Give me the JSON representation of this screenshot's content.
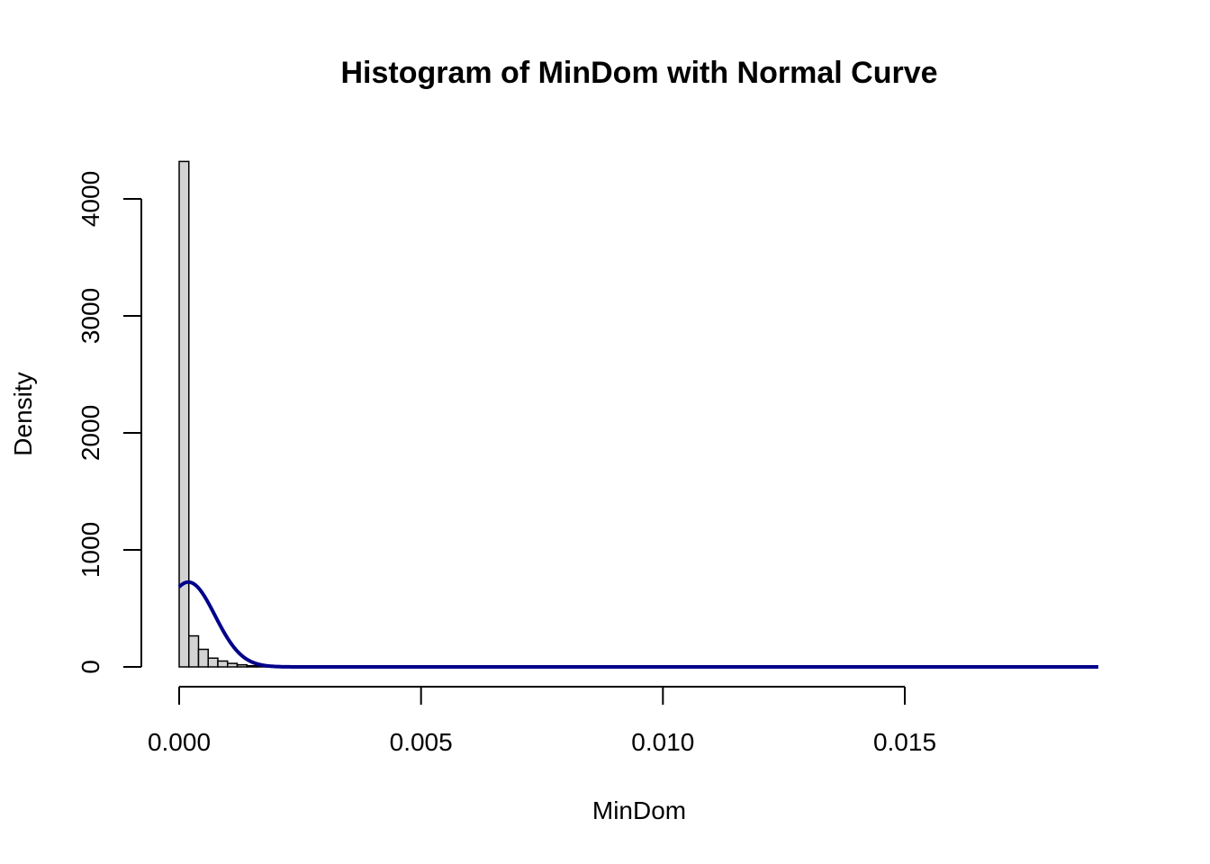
{
  "chart_data": {
    "type": "bar",
    "title": "Histogram of MinDom with Normal Curve",
    "xlabel": "MinDom",
    "ylabel": "Density",
    "xlim": [
      0,
      0.019
    ],
    "ylim": [
      0,
      4300
    ],
    "x_ticks": [
      {
        "value": 0.0,
        "label": "0.000"
      },
      {
        "value": 0.005,
        "label": "0.005"
      },
      {
        "value": 0.01,
        "label": "0.010"
      },
      {
        "value": 0.015,
        "label": "0.015"
      }
    ],
    "y_ticks": [
      {
        "value": 0,
        "label": "0"
      },
      {
        "value": 1000,
        "label": "1000"
      },
      {
        "value": 2000,
        "label": "2000"
      },
      {
        "value": 3000,
        "label": "3000"
      },
      {
        "value": 4000,
        "label": "4000"
      }
    ],
    "histogram": {
      "bin_width": 0.0002,
      "bins": [
        {
          "x0": 0.0,
          "x1": 0.0002,
          "density": 4320
        },
        {
          "x0": 0.0002,
          "x1": 0.0004,
          "density": 265
        },
        {
          "x0": 0.0004,
          "x1": 0.0006,
          "density": 150
        },
        {
          "x0": 0.0006,
          "x1": 0.0008,
          "density": 75
        },
        {
          "x0": 0.0008,
          "x1": 0.001,
          "density": 50
        },
        {
          "x0": 0.001,
          "x1": 0.0012,
          "density": 30
        },
        {
          "x0": 0.0012,
          "x1": 0.0014,
          "density": 18
        },
        {
          "x0": 0.0014,
          "x1": 0.0016,
          "density": 10
        },
        {
          "x0": 0.0016,
          "x1": 0.0018,
          "density": 6
        },
        {
          "x0": 0.0018,
          "x1": 0.002,
          "density": 3
        }
      ],
      "bar_color": "#d3d3d3"
    },
    "normal_curve": {
      "mean": 0.00019,
      "sd": 0.00055,
      "x_range": [
        0.0,
        0.019
      ],
      "color": "#00008b"
    },
    "grid": false
  }
}
